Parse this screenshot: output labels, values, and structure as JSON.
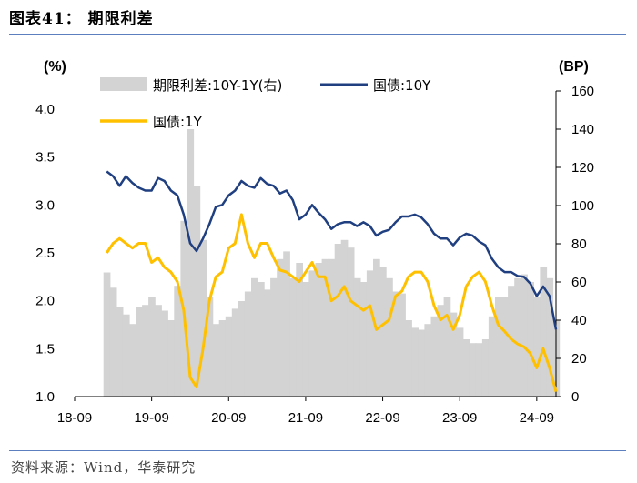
{
  "figure": {
    "title": "图表41：  期限利差",
    "source": "资料来源：Wind，华泰研究"
  },
  "chart_data": {
    "type": "line",
    "title": "期限利差",
    "left_unit": "(%)",
    "right_unit": "(BP)",
    "x_ticks": [
      "18-09",
      "19-09",
      "20-09",
      "21-09",
      "22-09",
      "23-09",
      "24-09"
    ],
    "x_range": [
      "2018-09",
      "2024-12"
    ],
    "left_ylim": [
      1.0,
      4.0
    ],
    "left_ticks": [
      "1.0",
      "1.5",
      "2.0",
      "2.5",
      "3.0",
      "3.5",
      "4.0"
    ],
    "right_ylim": [
      0,
      160
    ],
    "right_ticks": [
      "0",
      "20",
      "40",
      "60",
      "80",
      "100",
      "120",
      "140",
      "160"
    ],
    "grid": false,
    "legend_position": "top",
    "colors": {
      "spread": "#d3d3d3",
      "y10": "#1f3f80",
      "y1": "#ffc000"
    },
    "series": [
      {
        "name": "期限利差:10Y-1Y(右)",
        "type": "area",
        "axis": "right",
        "x": [
          "2019-02",
          "2019-03",
          "2019-04",
          "2019-05",
          "2019-06",
          "2019-07",
          "2019-08",
          "2019-09",
          "2019-10",
          "2019-11",
          "2019-12",
          "2020-01",
          "2020-02",
          "2020-03",
          "2020-04",
          "2020-05",
          "2020-06",
          "2020-07",
          "2020-08",
          "2020-09",
          "2020-10",
          "2020-11",
          "2020-12",
          "2021-01",
          "2021-02",
          "2021-03",
          "2021-04",
          "2021-05",
          "2021-06",
          "2021-07",
          "2021-08",
          "2021-09",
          "2021-10",
          "2021-11",
          "2021-12",
          "2022-01",
          "2022-02",
          "2022-03",
          "2022-04",
          "2022-05",
          "2022-06",
          "2022-07",
          "2022-08",
          "2022-09",
          "2022-10",
          "2022-11",
          "2022-12",
          "2023-01",
          "2023-02",
          "2023-03",
          "2023-04",
          "2023-05",
          "2023-06",
          "2023-07",
          "2023-08",
          "2023-09",
          "2023-10",
          "2023-11",
          "2023-12",
          "2024-01",
          "2024-02",
          "2024-03",
          "2024-04",
          "2024-05",
          "2024-06",
          "2024-07",
          "2024-08",
          "2024-09",
          "2024-10",
          "2024-11",
          "2024-12"
        ],
        "values": [
          65,
          57,
          47,
          43,
          38,
          47,
          48,
          52,
          48,
          45,
          40,
          58,
          92,
          140,
          110,
          82,
          52,
          38,
          40,
          42,
          46,
          50,
          55,
          62,
          60,
          56,
          62,
          72,
          76,
          62,
          70,
          60,
          66,
          70,
          72,
          72,
          80,
          82,
          78,
          62,
          60,
          66,
          72,
          68,
          62,
          55,
          54,
          40,
          36,
          35,
          38,
          42,
          48,
          52,
          44,
          36,
          30,
          28,
          28,
          30,
          42,
          52,
          52,
          58,
          62,
          64,
          60,
          52,
          68,
          62,
          40
        ]
      },
      {
        "name": "国债:10Y",
        "type": "line",
        "axis": "left",
        "x": [
          "2019-02",
          "2019-03",
          "2019-04",
          "2019-05",
          "2019-06",
          "2019-07",
          "2019-08",
          "2019-09",
          "2019-10",
          "2019-11",
          "2019-12",
          "2020-01",
          "2020-02",
          "2020-03",
          "2020-04",
          "2020-05",
          "2020-06",
          "2020-07",
          "2020-08",
          "2020-09",
          "2020-10",
          "2020-11",
          "2020-12",
          "2021-01",
          "2021-02",
          "2021-03",
          "2021-04",
          "2021-05",
          "2021-06",
          "2021-07",
          "2021-08",
          "2021-09",
          "2021-10",
          "2021-11",
          "2021-12",
          "2022-01",
          "2022-02",
          "2022-03",
          "2022-04",
          "2022-05",
          "2022-06",
          "2022-07",
          "2022-08",
          "2022-09",
          "2022-10",
          "2022-11",
          "2022-12",
          "2023-01",
          "2023-02",
          "2023-03",
          "2023-04",
          "2023-05",
          "2023-06",
          "2023-07",
          "2023-08",
          "2023-09",
          "2023-10",
          "2023-11",
          "2023-12",
          "2024-01",
          "2024-02",
          "2024-03",
          "2024-04",
          "2024-05",
          "2024-06",
          "2024-07",
          "2024-08",
          "2024-09",
          "2024-10",
          "2024-11",
          "2024-12"
        ],
        "values": [
          3.35,
          3.3,
          3.2,
          3.3,
          3.23,
          3.18,
          3.15,
          3.15,
          3.28,
          3.25,
          3.15,
          3.1,
          2.9,
          2.6,
          2.52,
          2.65,
          2.8,
          2.98,
          3.0,
          3.1,
          3.15,
          3.25,
          3.2,
          3.18,
          3.28,
          3.22,
          3.2,
          3.12,
          3.15,
          3.05,
          2.85,
          2.9,
          3.0,
          2.92,
          2.85,
          2.75,
          2.8,
          2.82,
          2.82,
          2.78,
          2.82,
          2.78,
          2.68,
          2.72,
          2.74,
          2.82,
          2.88,
          2.88,
          2.9,
          2.87,
          2.8,
          2.7,
          2.65,
          2.65,
          2.58,
          2.66,
          2.7,
          2.68,
          2.62,
          2.58,
          2.44,
          2.35,
          2.3,
          2.3,
          2.26,
          2.25,
          2.18,
          2.05,
          2.15,
          2.05,
          1.7
        ]
      },
      {
        "name": "国债:1Y",
        "type": "line",
        "axis": "left",
        "x": [
          "2019-02",
          "2019-03",
          "2019-04",
          "2019-05",
          "2019-06",
          "2019-07",
          "2019-08",
          "2019-09",
          "2019-10",
          "2019-11",
          "2019-12",
          "2020-01",
          "2020-02",
          "2020-03",
          "2020-04",
          "2020-05",
          "2020-06",
          "2020-07",
          "2020-08",
          "2020-09",
          "2020-10",
          "2020-11",
          "2020-12",
          "2021-01",
          "2021-02",
          "2021-03",
          "2021-04",
          "2021-05",
          "2021-06",
          "2021-07",
          "2021-08",
          "2021-09",
          "2021-10",
          "2021-11",
          "2021-12",
          "2022-01",
          "2022-02",
          "2022-03",
          "2022-04",
          "2022-05",
          "2022-06",
          "2022-07",
          "2022-08",
          "2022-09",
          "2022-10",
          "2022-11",
          "2022-12",
          "2023-01",
          "2023-02",
          "2023-03",
          "2023-04",
          "2023-05",
          "2023-06",
          "2023-07",
          "2023-08",
          "2023-09",
          "2023-10",
          "2023-11",
          "2023-12",
          "2024-01",
          "2024-02",
          "2024-03",
          "2024-04",
          "2024-05",
          "2024-06",
          "2024-07",
          "2024-08",
          "2024-09",
          "2024-10",
          "2024-11",
          "2024-12"
        ],
        "values": [
          2.5,
          2.6,
          2.65,
          2.6,
          2.55,
          2.6,
          2.6,
          2.4,
          2.45,
          2.35,
          2.3,
          2.2,
          1.9,
          1.2,
          1.1,
          1.5,
          2.0,
          2.25,
          2.3,
          2.55,
          2.6,
          2.9,
          2.6,
          2.45,
          2.6,
          2.6,
          2.45,
          2.32,
          2.3,
          2.25,
          2.2,
          2.3,
          2.4,
          2.25,
          2.25,
          2.0,
          2.05,
          2.15,
          2.0,
          1.95,
          1.9,
          1.95,
          1.7,
          1.75,
          1.8,
          2.05,
          2.1,
          2.25,
          2.3,
          2.3,
          2.2,
          1.95,
          1.8,
          1.85,
          1.7,
          1.85,
          2.15,
          2.25,
          2.3,
          2.2,
          1.95,
          1.75,
          1.68,
          1.6,
          1.55,
          1.52,
          1.45,
          1.3,
          1.5,
          1.3,
          1.05
        ]
      }
    ]
  }
}
